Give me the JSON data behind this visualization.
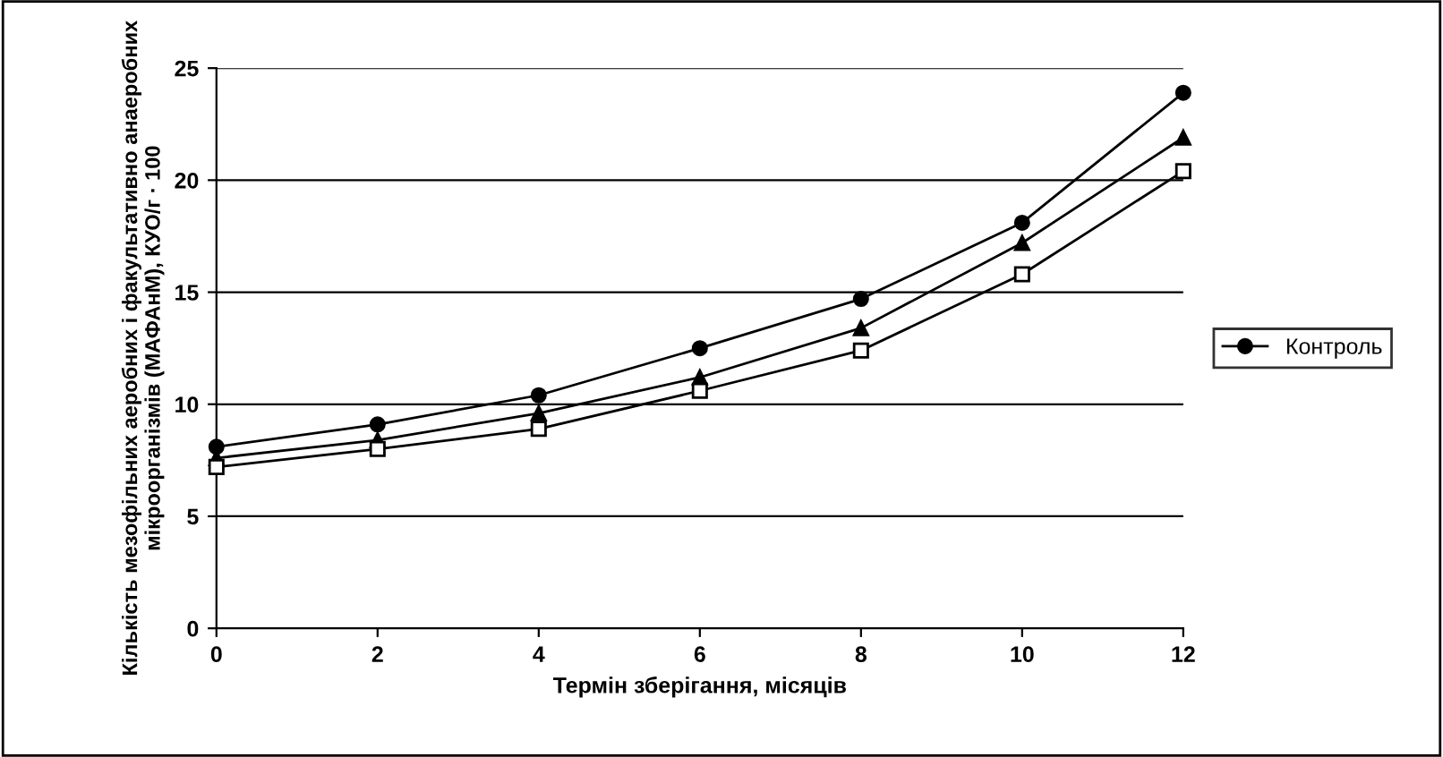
{
  "chart_data": {
    "type": "line",
    "xlabel": "Термін зберігання, місяців",
    "ylabel": "Кількість мезофільних аеробних і факультативно анаеробних мікроорганізмів (МАФАнМ), КУО/г · 100",
    "x": [
      0,
      2,
      4,
      6,
      8,
      10,
      12
    ],
    "series": [
      {
        "color": "#000000",
        "marker": "triangle",
        "values": [
          7.6,
          8.4,
          9.6,
          11.2,
          13.4,
          17.2,
          21.9
        ]
      },
      {
        "color": "#000000",
        "marker": "square",
        "values": [
          7.2,
          8.0,
          8.9,
          10.6,
          12.4,
          15.8,
          20.4
        ]
      },
      {
        "name": "Контроль",
        "color": "#000000",
        "marker": "circle",
        "values": [
          8.1,
          9.1,
          10.4,
          12.5,
          14.7,
          18.1,
          23.9
        ]
      }
    ],
    "xlim": [
      0,
      12
    ],
    "xticks": [
      0,
      2,
      4,
      6,
      8,
      10,
      12
    ],
    "ylim": [
      0,
      25
    ],
    "yticks": [
      0,
      5,
      10,
      15,
      20,
      25
    ],
    "grid": "y",
    "legend": "right",
    "line_style": "solid"
  }
}
